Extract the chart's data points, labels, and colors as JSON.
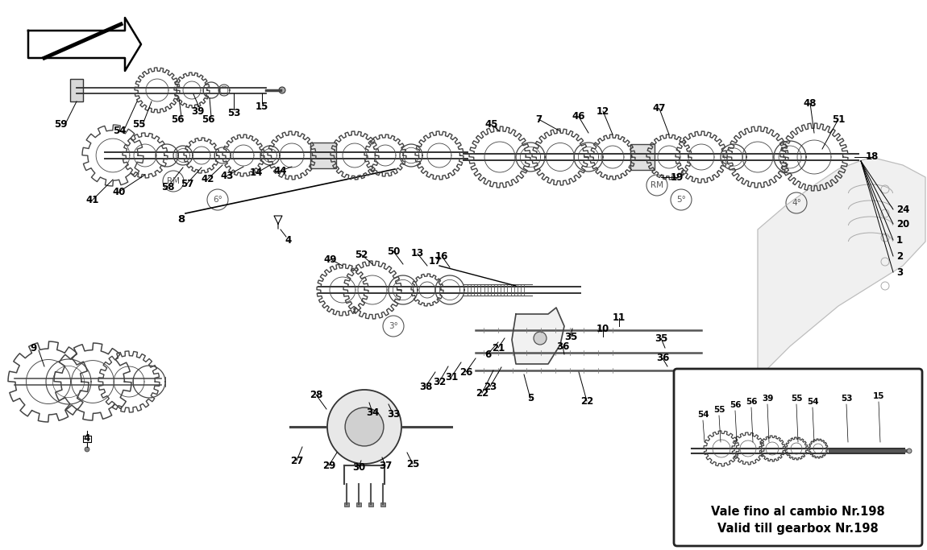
{
  "bg_color": "#ffffff",
  "line_color": "#222222",
  "gear_color": "#444444",
  "box_text_line1": "Vale fino al cambio Nr.198",
  "box_text_line2": "Valid till gearbox Nr.198",
  "figw": 11.5,
  "figh": 6.83,
  "dpi": 100
}
